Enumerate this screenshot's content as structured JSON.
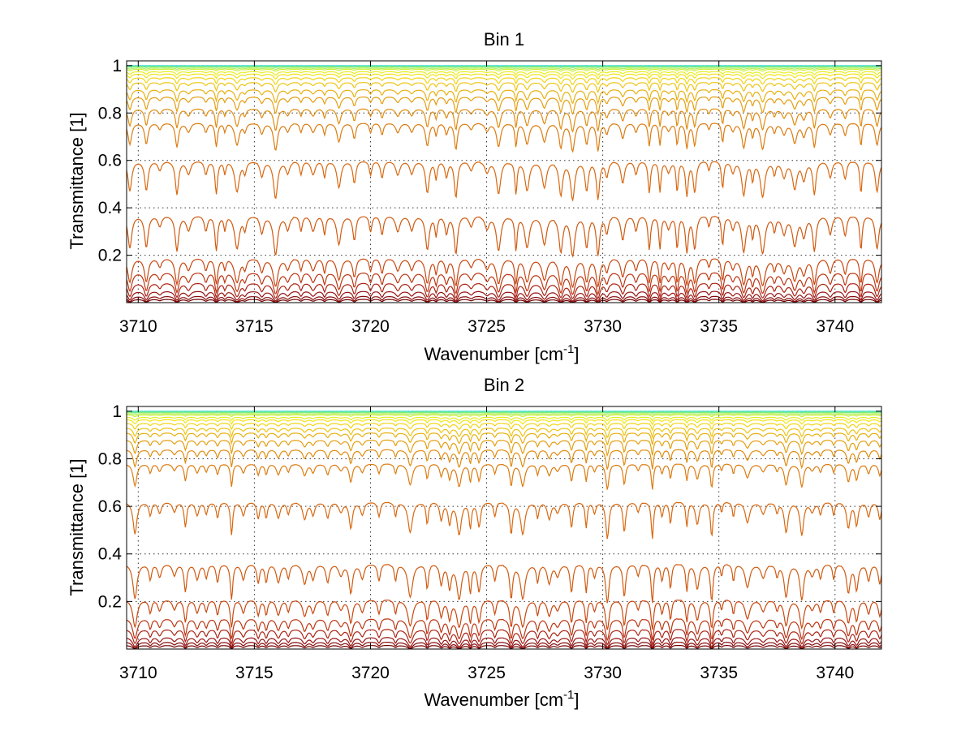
{
  "chart_data": [
    {
      "type": "line",
      "title": "Bin 1",
      "xlabel": "Wavenumber [cm",
      "xlabel_sup": "-1",
      "xlabel_end": "]",
      "ylabel": "Transmittance [1]",
      "xlim": [
        3709.5,
        3742
      ],
      "ylim": [
        0,
        1.02
      ],
      "xticks": [
        3710,
        3715,
        3720,
        3725,
        3730,
        3735,
        3740
      ],
      "xtick_labels": [
        "3710",
        "3715",
        "3720",
        "3725",
        "3730",
        "3735",
        "3740"
      ],
      "yticks": [
        0.2,
        0.4,
        0.6,
        0.8,
        1.0
      ],
      "ytick_labels": [
        "0.2",
        "0.4",
        "0.6",
        "0.8",
        "1"
      ],
      "grid": true,
      "series_levels": [
        1.0,
        0.999,
        0.997,
        0.995,
        0.99,
        0.985,
        0.975,
        0.965,
        0.95,
        0.93,
        0.9,
        0.87,
        0.82,
        0.76,
        0.6,
        0.37,
        0.19,
        0.13,
        0.085,
        0.05,
        0.028,
        0.015
      ],
      "series_colors": [
        "#3fd9e8",
        "#4ee6c8",
        "#60e8a8",
        "#84ec7a",
        "#aaf05a",
        "#ccee3a",
        "#e6ee22",
        "#f2e414",
        "#f2d412",
        "#eec412",
        "#e8b010",
        "#e49e10",
        "#e08c10",
        "#dc7c10",
        "#d86810",
        "#d05a10",
        "#c84810",
        "#bc3612",
        "#ac2414",
        "#981414",
        "#860a0a",
        "#740000"
      ]
    },
    {
      "type": "line",
      "title": "Bin 2",
      "xlabel": "Wavenumber [cm",
      "xlabel_sup": "-1",
      "xlabel_end": "]",
      "ylabel": "Transmittance [1]",
      "xlim": [
        3709.5,
        3742
      ],
      "ylim": [
        0,
        1.02
      ],
      "xticks": [
        3710,
        3715,
        3720,
        3725,
        3730,
        3735,
        3740
      ],
      "xtick_labels": [
        "3710",
        "3715",
        "3720",
        "3725",
        "3730",
        "3735",
        "3740"
      ],
      "yticks": [
        0.2,
        0.4,
        0.6,
        0.8,
        1.0
      ],
      "ytick_labels": [
        "0.2",
        "0.4",
        "0.6",
        "0.8",
        "1"
      ],
      "grid": true,
      "series_levels": [
        1.0,
        0.999,
        0.997,
        0.995,
        0.99,
        0.985,
        0.975,
        0.965,
        0.95,
        0.93,
        0.91,
        0.88,
        0.84,
        0.78,
        0.62,
        0.36,
        0.21,
        0.13,
        0.085,
        0.05,
        0.03,
        0.016
      ],
      "series_colors": [
        "#3fd9e8",
        "#4ee6c8",
        "#60e8a8",
        "#84ec7a",
        "#aaf05a",
        "#ccee3a",
        "#e6ee22",
        "#f2e414",
        "#f2d412",
        "#eec412",
        "#e8b010",
        "#e49e10",
        "#e08c10",
        "#dc7c10",
        "#d86810",
        "#d05a10",
        "#c84810",
        "#bc3612",
        "#ac2414",
        "#981414",
        "#860a0a",
        "#740000"
      ]
    }
  ]
}
